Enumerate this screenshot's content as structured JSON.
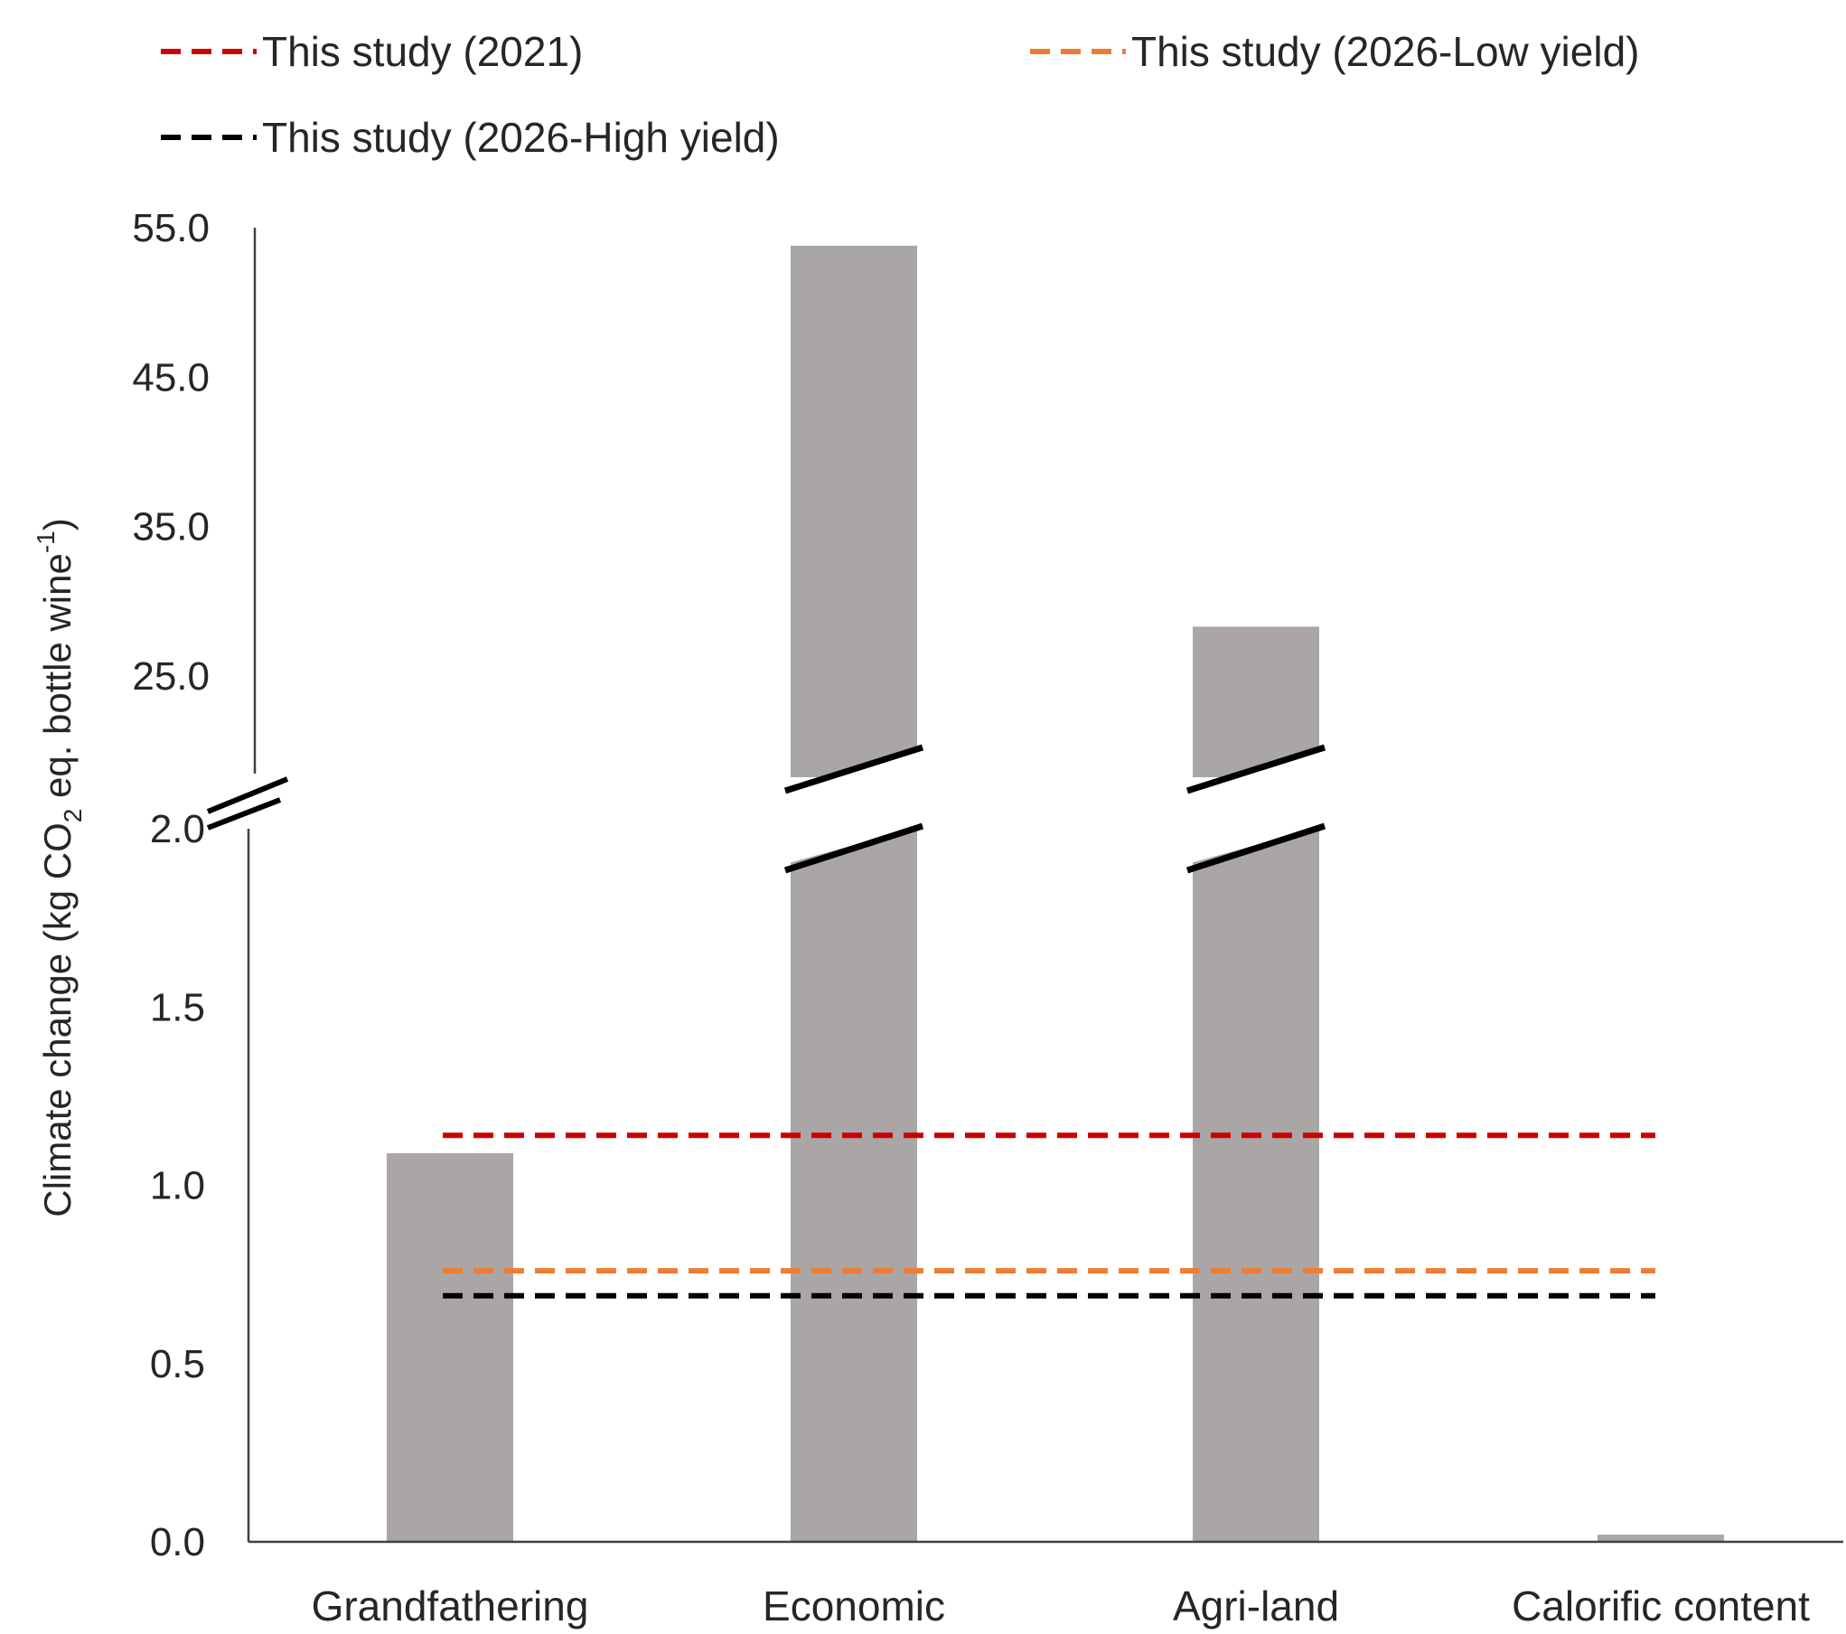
{
  "chart_data": {
    "type": "bar",
    "title": "",
    "xlabel": "",
    "ylabel": {
      "prefix": "Climate change (kg CO",
      "sub": "2",
      "mid": " eq. bottle wine",
      "sup": "-1",
      "suffix": ")"
    },
    "categories": [
      "Grandfathering",
      "Economic",
      "Agri-land",
      "Calorific content"
    ],
    "values": [
      1.09,
      53.8,
      28.3,
      0.02
    ],
    "bar_color": "#aaa6a6",
    "axis_break": {
      "lower_max": 2.0,
      "upper_min": 20.0
    },
    "y_ticks_lower": [
      "0.0",
      "0.5",
      "1.0",
      "1.5",
      "2.0"
    ],
    "y_ticks_upper": [
      "25.0",
      "35.0",
      "45.0",
      "55.0"
    ],
    "ylim_lower": [
      0,
      2.0
    ],
    "ylim_upper": [
      20.0,
      55.0
    ],
    "reference_lines": [
      {
        "name": "This study (2021)",
        "value": 1.14,
        "color": "#cc0000",
        "style": "dashed"
      },
      {
        "name": "This study (2026-Low yield)",
        "value": 0.76,
        "color": "#ed7d31",
        "style": "dashed"
      },
      {
        "name": "This study (2026-High yield)",
        "value": 0.69,
        "color": "#000000",
        "style": "dashed"
      }
    ],
    "legend_position": "top",
    "grid": false
  }
}
